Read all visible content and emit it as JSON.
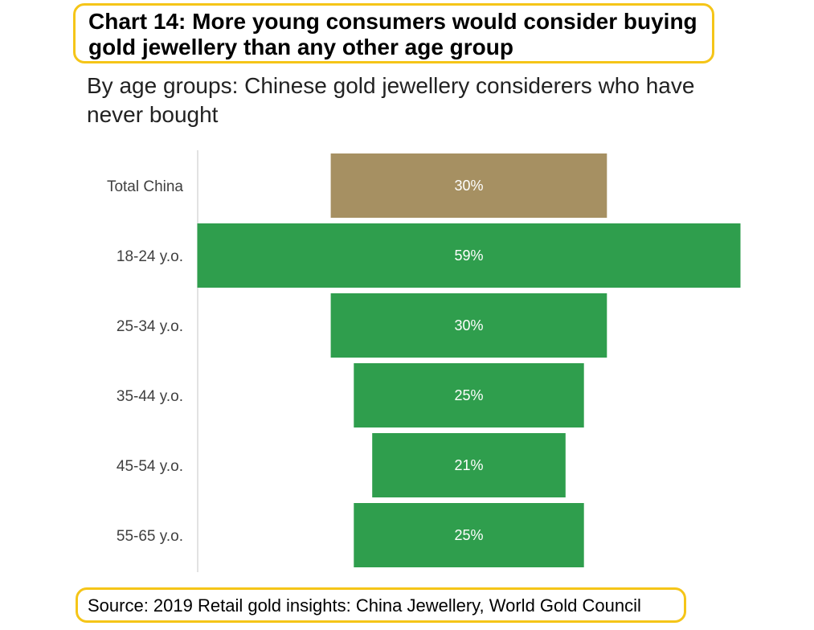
{
  "title": "Chart 14: More young consumers would consider buying gold jewellery than any other age group",
  "subtitle": "By age groups: Chinese gold jewellery considerers who have never bought",
  "source": "Source: 2019 Retail gold insights: China Jewellery, World Gold Council",
  "colors": {
    "total_bar": "#a69062",
    "age_bar": "#2f9e4d",
    "label_text": "#404040",
    "value_text": "#ffffff",
    "axis_line": "#d9d9d9",
    "highlight_border": "#f5c518"
  },
  "chart_data": {
    "type": "bar",
    "orientation": "horizontal-centered-funnel",
    "title": "Chart 14: More young consumers would consider buying gold jewellery than any other age group",
    "subtitle": "By age groups: Chinese gold jewellery considerers who have never bought",
    "categories": [
      "Total China",
      "18-24 y.o.",
      "25-34 y.o.",
      "35-44 y.o.",
      "45-54 y.o.",
      "55-65 y.o."
    ],
    "values": [
      30,
      59,
      30,
      25,
      21,
      25
    ],
    "value_labels": [
      "30%",
      "59%",
      "30%",
      "25%",
      "21%",
      "25%"
    ],
    "unit": "%",
    "xlim": [
      0,
      59
    ],
    "grid": false,
    "legend": "none"
  }
}
